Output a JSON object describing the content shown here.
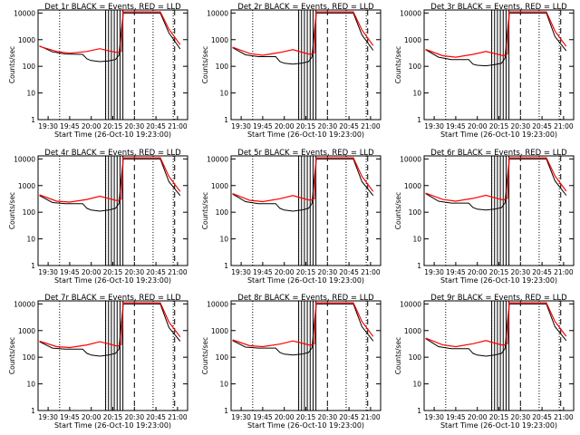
{
  "chart_data": {
    "type": "line",
    "layout": "3x3 grid",
    "xlabel": "Start Time (26-Oct-10 19:23:00)",
    "ylabel": "Counts/sec",
    "x_ticks": [
      "19:30",
      "19:45",
      "20:00",
      "20:15",
      "20:30",
      "20:45",
      "21:00"
    ],
    "y_ticks": [
      "1",
      "10",
      "100",
      "1000",
      "10000"
    ],
    "xlim": [
      "19:23",
      "21:07"
    ],
    "ylim": [
      1,
      13000
    ],
    "y_scale": "log",
    "grid": false,
    "line_colors": {
      "events": "#000000",
      "lld": "#ff0000"
    },
    "panels": [
      {
        "title": "Det 1r BLACK = Events, RED = LLD",
        "events": [
          [
            19.4,
            580
          ],
          [
            19.55,
            350
          ],
          [
            19.7,
            290
          ],
          [
            19.9,
            280
          ],
          [
            19.95,
            190
          ],
          [
            20.0,
            165
          ],
          [
            20.1,
            150
          ],
          [
            20.2,
            160
          ],
          [
            20.28,
            180
          ],
          [
            20.32,
            260
          ],
          [
            20.37,
            10000
          ],
          [
            20.8,
            10000
          ],
          [
            20.9,
            1800
          ],
          [
            21.03,
            450
          ]
        ],
        "lld": [
          [
            19.4,
            560
          ],
          [
            19.6,
            360
          ],
          [
            19.75,
            310
          ],
          [
            19.95,
            360
          ],
          [
            20.1,
            460
          ],
          [
            20.2,
            380
          ],
          [
            20.3,
            330
          ],
          [
            20.35,
            360
          ],
          [
            20.37,
            11000
          ],
          [
            20.8,
            11000
          ],
          [
            20.9,
            2500
          ],
          [
            21.03,
            650
          ]
        ]
      },
      {
        "title": "Det 2r BLACK = Events, RED = LLD",
        "events": [
          [
            19.4,
            500
          ],
          [
            19.55,
            270
          ],
          [
            19.7,
            230
          ],
          [
            19.9,
            230
          ],
          [
            19.95,
            150
          ],
          [
            20.0,
            130
          ],
          [
            20.1,
            120
          ],
          [
            20.2,
            130
          ],
          [
            20.28,
            150
          ],
          [
            20.32,
            220
          ],
          [
            20.37,
            10000
          ],
          [
            20.8,
            10000
          ],
          [
            20.9,
            1500
          ],
          [
            21.03,
            400
          ]
        ],
        "lld": [
          [
            19.4,
            520
          ],
          [
            19.6,
            300
          ],
          [
            19.75,
            260
          ],
          [
            19.95,
            330
          ],
          [
            20.1,
            420
          ],
          [
            20.2,
            340
          ],
          [
            20.3,
            280
          ],
          [
            20.35,
            320
          ],
          [
            20.37,
            11000
          ],
          [
            20.8,
            11000
          ],
          [
            20.9,
            2300
          ],
          [
            21.03,
            600
          ]
        ]
      },
      {
        "title": "Det 3r BLACK = Events, RED = LLD",
        "events": [
          [
            19.4,
            420
          ],
          [
            19.55,
            220
          ],
          [
            19.7,
            180
          ],
          [
            19.9,
            180
          ],
          [
            19.95,
            120
          ],
          [
            20.0,
            110
          ],
          [
            20.1,
            105
          ],
          [
            20.2,
            115
          ],
          [
            20.28,
            130
          ],
          [
            20.32,
            200
          ],
          [
            20.37,
            10000
          ],
          [
            20.8,
            10000
          ],
          [
            20.9,
            1300
          ],
          [
            21.03,
            380
          ]
        ],
        "lld": [
          [
            19.4,
            430
          ],
          [
            19.6,
            250
          ],
          [
            19.75,
            220
          ],
          [
            19.95,
            280
          ],
          [
            20.1,
            360
          ],
          [
            20.2,
            300
          ],
          [
            20.3,
            250
          ],
          [
            20.35,
            290
          ],
          [
            20.37,
            11000
          ],
          [
            20.8,
            11000
          ],
          [
            20.9,
            2100
          ],
          [
            21.03,
            560
          ]
        ]
      },
      {
        "title": "Det 4r BLACK = Events, RED = LLD",
        "events": [
          [
            19.4,
            420
          ],
          [
            19.55,
            230
          ],
          [
            19.7,
            210
          ],
          [
            19.9,
            210
          ],
          [
            19.95,
            140
          ],
          [
            20.0,
            120
          ],
          [
            20.1,
            110
          ],
          [
            20.2,
            120
          ],
          [
            20.28,
            140
          ],
          [
            20.32,
            210
          ],
          [
            20.37,
            10000
          ],
          [
            20.8,
            10000
          ],
          [
            20.9,
            1400
          ],
          [
            21.03,
            420
          ]
        ],
        "lld": [
          [
            19.4,
            450
          ],
          [
            19.6,
            260
          ],
          [
            19.75,
            240
          ],
          [
            19.95,
            300
          ],
          [
            20.1,
            400
          ],
          [
            20.2,
            330
          ],
          [
            20.3,
            270
          ],
          [
            20.35,
            310
          ],
          [
            20.37,
            11000
          ],
          [
            20.8,
            11000
          ],
          [
            20.9,
            2200
          ],
          [
            21.03,
            600
          ]
        ]
      },
      {
        "title": "Det 5r BLACK = Events, RED = LLD",
        "events": [
          [
            19.4,
            480
          ],
          [
            19.55,
            250
          ],
          [
            19.7,
            210
          ],
          [
            19.9,
            210
          ],
          [
            19.95,
            140
          ],
          [
            20.0,
            120
          ],
          [
            20.1,
            110
          ],
          [
            20.2,
            120
          ],
          [
            20.28,
            140
          ],
          [
            20.32,
            210
          ],
          [
            20.37,
            10000
          ],
          [
            20.8,
            10000
          ],
          [
            20.9,
            1400
          ],
          [
            21.03,
            420
          ]
        ],
        "lld": [
          [
            19.4,
            500
          ],
          [
            19.6,
            280
          ],
          [
            19.75,
            250
          ],
          [
            19.95,
            320
          ],
          [
            20.1,
            420
          ],
          [
            20.2,
            340
          ],
          [
            20.3,
            280
          ],
          [
            20.35,
            320
          ],
          [
            20.37,
            11000
          ],
          [
            20.8,
            11000
          ],
          [
            20.9,
            2200
          ],
          [
            21.03,
            600
          ]
        ]
      },
      {
        "title": "Det 6r BLACK = Events, RED = LLD",
        "events": [
          [
            19.4,
            500
          ],
          [
            19.55,
            260
          ],
          [
            19.7,
            220
          ],
          [
            19.9,
            220
          ],
          [
            19.95,
            150
          ],
          [
            20.0,
            130
          ],
          [
            20.1,
            120
          ],
          [
            20.2,
            130
          ],
          [
            20.28,
            150
          ],
          [
            20.32,
            220
          ],
          [
            20.37,
            10000
          ],
          [
            20.8,
            10000
          ],
          [
            20.9,
            1500
          ],
          [
            21.03,
            430
          ]
        ],
        "lld": [
          [
            19.4,
            520
          ],
          [
            19.6,
            300
          ],
          [
            19.75,
            260
          ],
          [
            19.95,
            330
          ],
          [
            20.1,
            430
          ],
          [
            20.2,
            350
          ],
          [
            20.3,
            290
          ],
          [
            20.35,
            330
          ],
          [
            20.37,
            11000
          ],
          [
            20.8,
            11000
          ],
          [
            20.9,
            2300
          ],
          [
            21.03,
            620
          ]
        ]
      },
      {
        "title": "Det 7r BLACK = Events, RED = LLD",
        "events": [
          [
            19.4,
            380
          ],
          [
            19.55,
            220
          ],
          [
            19.7,
            200
          ],
          [
            19.9,
            200
          ],
          [
            19.95,
            140
          ],
          [
            20.0,
            120
          ],
          [
            20.1,
            110
          ],
          [
            20.2,
            120
          ],
          [
            20.28,
            140
          ],
          [
            20.32,
            200
          ],
          [
            20.37,
            10000
          ],
          [
            20.8,
            10000
          ],
          [
            20.9,
            1300
          ],
          [
            21.03,
            400
          ]
        ],
        "lld": [
          [
            19.4,
            400
          ],
          [
            19.6,
            250
          ],
          [
            19.75,
            230
          ],
          [
            19.95,
            290
          ],
          [
            20.1,
            380
          ],
          [
            20.2,
            320
          ],
          [
            20.3,
            260
          ],
          [
            20.35,
            300
          ],
          [
            20.37,
            11000
          ],
          [
            20.8,
            11000
          ],
          [
            20.9,
            2100
          ],
          [
            21.03,
            580
          ]
        ]
      },
      {
        "title": "Det 8r BLACK = Events, RED = LLD",
        "events": [
          [
            19.4,
            420
          ],
          [
            19.55,
            240
          ],
          [
            19.7,
            220
          ],
          [
            19.9,
            220
          ],
          [
            19.95,
            150
          ],
          [
            20.0,
            130
          ],
          [
            20.1,
            120
          ],
          [
            20.2,
            130
          ],
          [
            20.28,
            150
          ],
          [
            20.32,
            220
          ],
          [
            20.37,
            10000
          ],
          [
            20.8,
            10000
          ],
          [
            20.9,
            1400
          ],
          [
            21.03,
            410
          ]
        ],
        "lld": [
          [
            19.4,
            450
          ],
          [
            19.6,
            270
          ],
          [
            19.75,
            250
          ],
          [
            19.95,
            310
          ],
          [
            20.1,
            410
          ],
          [
            20.2,
            340
          ],
          [
            20.3,
            280
          ],
          [
            20.35,
            320
          ],
          [
            20.37,
            11000
          ],
          [
            20.8,
            11000
          ],
          [
            20.9,
            2200
          ],
          [
            21.03,
            600
          ]
        ]
      },
      {
        "title": "Det 9r BLACK = Events, RED = LLD",
        "events": [
          [
            19.4,
            500
          ],
          [
            19.55,
            250
          ],
          [
            19.7,
            210
          ],
          [
            19.9,
            210
          ],
          [
            19.95,
            140
          ],
          [
            20.0,
            120
          ],
          [
            20.1,
            110
          ],
          [
            20.2,
            120
          ],
          [
            20.28,
            140
          ],
          [
            20.32,
            210
          ],
          [
            20.37,
            10000
          ],
          [
            20.8,
            10000
          ],
          [
            20.9,
            1400
          ],
          [
            21.03,
            420
          ]
        ],
        "lld": [
          [
            19.4,
            520
          ],
          [
            19.6,
            290
          ],
          [
            19.75,
            250
          ],
          [
            19.95,
            320
          ],
          [
            20.1,
            420
          ],
          [
            20.2,
            340
          ],
          [
            20.3,
            280
          ],
          [
            20.35,
            320
          ],
          [
            20.37,
            11000
          ],
          [
            20.8,
            11000
          ],
          [
            20.9,
            2200
          ],
          [
            21.03,
            610
          ]
        ]
      }
    ],
    "vertical_markers": {
      "dotted": [
        "19:38",
        "20:10",
        "20:43",
        "20:57"
      ],
      "solid": [
        "20:10",
        "20:12",
        "20:14",
        "20:16",
        "20:18",
        "20:20",
        "20:22"
      ],
      "dashed": [
        "20:30",
        "20:58"
      ]
    }
  }
}
